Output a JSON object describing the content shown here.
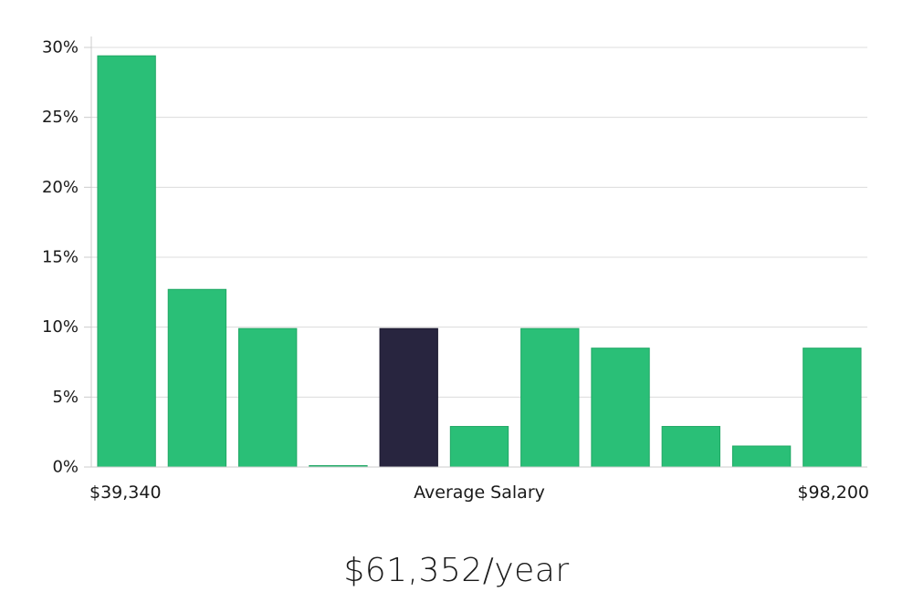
{
  "chart_data": {
    "type": "bar",
    "y_ticks": [
      "0%",
      "5%",
      "10%",
      "15%",
      "20%",
      "25%",
      "30%"
    ],
    "y_tick_values": [
      0,
      5,
      10,
      15,
      20,
      25,
      30
    ],
    "ylim": [
      0,
      30
    ],
    "grid": true,
    "values": [
      29.4,
      12.7,
      9.9,
      0.1,
      9.9,
      2.9,
      9.9,
      8.5,
      2.9,
      1.5,
      8.5
    ],
    "highlight_index": 4,
    "x_labels": {
      "left": "$39,340",
      "center": "Average Salary",
      "right": "$98,200"
    },
    "colors": {
      "bar": "#2abf77",
      "highlight": "#28253f"
    }
  },
  "summary": {
    "salary": "$61,352/year"
  }
}
